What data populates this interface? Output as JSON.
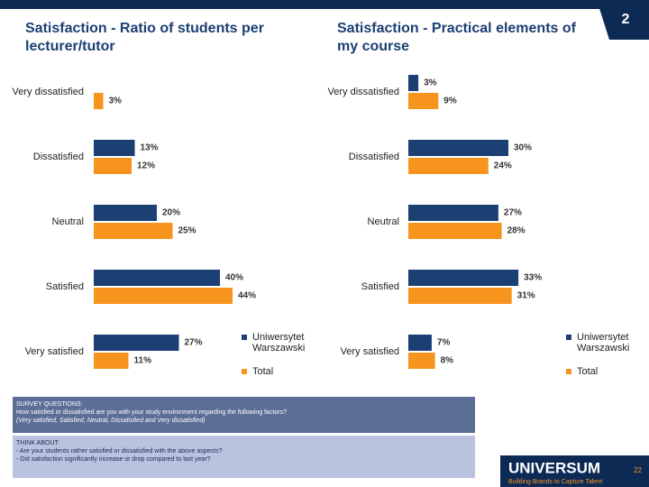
{
  "page_number": "2",
  "chart_data": [
    {
      "type": "bar",
      "orientation": "horizontal",
      "title": "Satisfaction - Ratio of students per lecturer/tutor",
      "categories": [
        "Very dissatisfied",
        "Dissatisfied",
        "Neutral",
        "Satisfied",
        "Very satisfied"
      ],
      "series": [
        {
          "name": "Uniwersytet Warszawski",
          "color": "#1c3f74",
          "values": [
            null,
            13,
            20,
            40,
            27
          ],
          "value_labels": [
            null,
            "13%",
            "20%",
            "40%",
            "27%"
          ]
        },
        {
          "name": "Total",
          "color": "#f7941d",
          "values": [
            3,
            12,
            25,
            44,
            11
          ],
          "value_labels": [
            "3%",
            "12%",
            "25%",
            "44%",
            "11%"
          ]
        }
      ],
      "legend": "right"
    },
    {
      "type": "bar",
      "orientation": "horizontal",
      "title": "Satisfaction - Practical elements of my course",
      "categories": [
        "Very dissatisfied",
        "Dissatisfied",
        "Neutral",
        "Satisfied",
        "Very satisfied"
      ],
      "series": [
        {
          "name": "Uniwersytet Warszawski",
          "color": "#1c3f74",
          "values": [
            3,
            30,
            27,
            33,
            7
          ],
          "value_labels": [
            "3%",
            "30%",
            "27%",
            "33%",
            "7%"
          ]
        },
        {
          "name": "Total",
          "color": "#f7941d",
          "values": [
            9,
            24,
            28,
            31,
            8
          ],
          "value_labels": [
            "9%",
            "24%",
            "28%",
            "31%",
            "8%"
          ]
        }
      ],
      "legend": "right"
    }
  ],
  "survey": {
    "heading": "SURVEY QUESTIONS:",
    "lines": [
      "How satisfied or dissatisfied are you with your study environment regarding the following factors?",
      "(Very satisfied, Satisfied, Neutral, Dissatisfied and Very dissatisfied)"
    ]
  },
  "think_about": {
    "heading": "THINK ABOUT:",
    "lines": [
      "- Are your students rather satisfied or dissatisfied with the above aspects?",
      "- Did satisfaction significantly increase or drop compared to last year?"
    ]
  },
  "logo": {
    "name": "UNIVERSUM",
    "tagline": "Building Brands to Capture Talent"
  },
  "slide_number": "22"
}
